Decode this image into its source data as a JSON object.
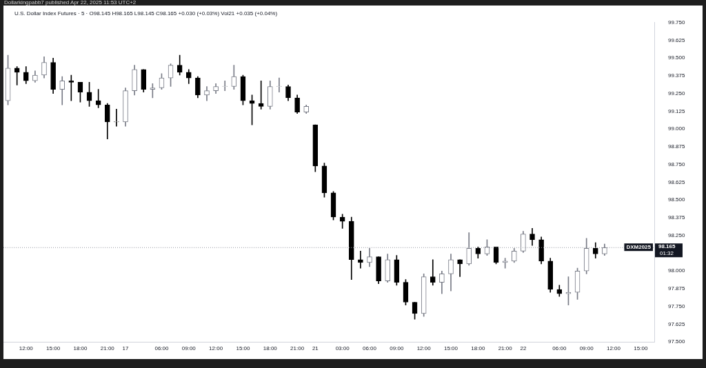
{
  "chart_data": {
    "type": "candlestick",
    "title": "U.S. Dollar Index Futures · 5 · O98.145 H98.165 L98.145 C98.165 +0.030 (+0.03%) Vol21 +0.035 (+0.04%)",
    "annotations": [
      "Dollarkingpabb7 published Apr 22, 2025 11:53 UTC+2",
      "DXM2025",
      "01:32"
    ],
    "categories": [
      null,
      null,
      "12:00",
      null,
      null,
      "15:00",
      null,
      null,
      "18:00",
      null,
      null,
      "21:00",
      null,
      "17",
      null,
      null,
      null,
      "06:00",
      null,
      null,
      "09:00",
      null,
      null,
      "12:00",
      null,
      null,
      "15:00",
      null,
      null,
      "18:00",
      null,
      null,
      "21:00",
      null,
      "21",
      null,
      null,
      "03:00",
      null,
      null,
      "06:00",
      null,
      null,
      "09:00",
      null,
      null,
      "12:00",
      null,
      null,
      "15:00",
      null,
      null,
      "18:00",
      null,
      null,
      "21:00",
      null,
      "22",
      null,
      null,
      null,
      "06:00",
      null,
      null,
      "09:00",
      null,
      null,
      "12:00",
      null,
      null,
      "15:00",
      null
    ],
    "colors": [
      "#787b86",
      "#000000",
      "#000000",
      "#787b86",
      "#787b86",
      "#000000",
      "#787b86",
      "#000000",
      "#000000",
      "#000000",
      "#000000",
      "#000000",
      "#000000",
      "#787b86",
      "#787b86",
      "#000000",
      "#787b86",
      "#787b86",
      "#787b86",
      "#000000",
      "#000000",
      "#000000",
      "#787b86",
      "#787b86",
      "#787b86",
      "#787b86",
      "#000000",
      "#000000",
      "#000000",
      "#787b86",
      "#787b86",
      "#000000",
      "#000000",
      "#787b86",
      "#000000",
      "#000000",
      "#000000",
      "#000000",
      "#000000",
      "#000000",
      "#787b86",
      "#000000",
      "#787b86",
      "#000000",
      "#000000",
      "#000000",
      "#787b86",
      "#000000",
      "#787b86",
      "#787b86",
      "#000000",
      "#787b86",
      "#000000",
      "#787b86",
      "#000000",
      "#787b86",
      "#787b86",
      "#787b86",
      "#000000",
      "#000000",
      "#000000",
      "#000000",
      "#787b86",
      "#787b86",
      "#787b86",
      "#000000",
      "#787b86",
      null,
      null,
      null,
      null,
      null
    ],
    "ohlc": [
      [
        99.2,
        99.52,
        99.17,
        99.43
      ],
      [
        99.43,
        99.44,
        99.31,
        99.4
      ],
      [
        99.4,
        99.44,
        99.32,
        99.34
      ],
      [
        99.34,
        99.41,
        99.33,
        99.38
      ],
      [
        99.38,
        99.51,
        99.36,
        99.47
      ],
      [
        99.47,
        99.5,
        99.25,
        99.28
      ],
      [
        99.28,
        99.37,
        99.17,
        99.34
      ],
      [
        99.34,
        99.38,
        99.2,
        99.33
      ],
      [
        99.33,
        99.33,
        99.19,
        99.26
      ],
      [
        99.26,
        99.33,
        99.16,
        99.2
      ],
      [
        99.2,
        99.28,
        99.15,
        99.17
      ],
      [
        99.17,
        99.18,
        98.93,
        99.05
      ],
      [
        99.05,
        99.14,
        99.02,
        99.05
      ],
      [
        99.05,
        99.29,
        99.02,
        99.27
      ],
      [
        99.27,
        99.45,
        99.24,
        99.42
      ],
      [
        99.42,
        99.42,
        99.26,
        99.28
      ],
      [
        99.28,
        99.32,
        99.22,
        99.29
      ],
      [
        99.29,
        99.39,
        99.28,
        99.36
      ],
      [
        99.36,
        99.46,
        99.3,
        99.45
      ],
      [
        99.45,
        99.52,
        99.38,
        99.4
      ],
      [
        99.4,
        99.42,
        99.32,
        99.36
      ],
      [
        99.36,
        99.37,
        99.22,
        99.24
      ],
      [
        99.24,
        99.3,
        99.2,
        99.27
      ],
      [
        99.27,
        99.32,
        99.25,
        99.3
      ],
      [
        99.3,
        99.34,
        99.27,
        99.3
      ],
      [
        99.3,
        99.45,
        99.28,
        99.37
      ],
      [
        99.37,
        99.38,
        99.17,
        99.2
      ],
      [
        99.2,
        99.24,
        99.03,
        99.18
      ],
      [
        99.18,
        99.34,
        99.14,
        99.16
      ],
      [
        99.16,
        99.34,
        99.14,
        99.3
      ],
      [
        99.3,
        99.36,
        99.26,
        99.3
      ],
      [
        99.3,
        99.31,
        99.2,
        99.22
      ],
      [
        99.22,
        99.24,
        99.11,
        99.12
      ],
      [
        99.12,
        99.17,
        99.11,
        99.16
      ],
      [
        99.03,
        99.03,
        98.7,
        98.74
      ],
      [
        98.74,
        98.76,
        98.52,
        98.55
      ],
      [
        98.55,
        98.56,
        98.36,
        98.38
      ],
      [
        98.38,
        98.4,
        98.3,
        98.35
      ],
      [
        98.35,
        98.38,
        97.94,
        98.08
      ],
      [
        98.08,
        98.14,
        98.02,
        98.06
      ],
      [
        98.06,
        98.16,
        98.03,
        98.1
      ],
      [
        98.1,
        98.1,
        97.91,
        97.93
      ],
      [
        97.93,
        98.12,
        97.92,
        98.08
      ],
      [
        98.08,
        98.11,
        97.9,
        97.92
      ],
      [
        97.92,
        97.94,
        97.76,
        97.78
      ],
      [
        97.78,
        97.78,
        97.66,
        97.7
      ],
      [
        97.7,
        97.98,
        97.68,
        97.96
      ],
      [
        97.96,
        98.08,
        97.9,
        97.92
      ],
      [
        97.92,
        98.0,
        97.84,
        97.98
      ],
      [
        97.98,
        98.12,
        97.86,
        98.08
      ],
      [
        98.08,
        98.08,
        97.96,
        98.05
      ],
      [
        98.05,
        98.27,
        98.04,
        98.16
      ],
      [
        98.16,
        98.17,
        98.09,
        98.12
      ],
      [
        98.12,
        98.22,
        98.11,
        98.17
      ],
      [
        98.17,
        98.17,
        98.05,
        98.06
      ],
      [
        98.06,
        98.09,
        98.02,
        98.07
      ],
      [
        98.07,
        98.16,
        98.06,
        98.14
      ],
      [
        98.14,
        98.28,
        98.13,
        98.26
      ],
      [
        98.26,
        98.3,
        98.18,
        98.22
      ],
      [
        98.22,
        98.24,
        98.05,
        98.07
      ],
      [
        98.07,
        98.09,
        97.85,
        97.87
      ],
      [
        97.87,
        97.9,
        97.82,
        97.84
      ],
      [
        97.84,
        97.96,
        97.76,
        97.85
      ],
      [
        97.85,
        98.02,
        97.8,
        98.0
      ],
      [
        98.0,
        98.23,
        97.98,
        98.16
      ],
      [
        98.16,
        98.2,
        98.09,
        98.12
      ],
      [
        98.12,
        98.19,
        98.11,
        98.165
      ],
      null,
      null,
      null,
      null,
      null
    ],
    "ylim": [
      97.5,
      99.75
    ],
    "yticks": [
      {
        "value": 97.5,
        "label": "97.500"
      },
      {
        "value": 97.625,
        "label": "97.625"
      },
      {
        "value": 97.75,
        "label": "97.750"
      },
      {
        "value": 97.875,
        "label": "97.875"
      },
      {
        "value": 98,
        "label": "98.000"
      },
      {
        "value": 98.25,
        "label": "98.250"
      },
      {
        "value": 98.375,
        "label": "98.375"
      },
      {
        "value": 98.5,
        "label": "98.500"
      },
      {
        "value": 98.625,
        "label": "98.625"
      },
      {
        "value": 98.75,
        "label": "98.750"
      },
      {
        "value": 98.875,
        "label": "98.875"
      },
      {
        "value": 99,
        "label": "99.000"
      },
      {
        "value": 99.125,
        "label": "99.125"
      },
      {
        "value": 99.25,
        "label": "99.250"
      },
      {
        "value": 99.375,
        "label": "99.375"
      },
      {
        "value": 99.5,
        "label": "99.500"
      },
      {
        "value": 99.625,
        "label": "99.625"
      },
      {
        "value": 99.75,
        "label": "99.750"
      }
    ],
    "ref_lines": [
      {
        "axis": "y",
        "value": 98.165,
        "label": "98.165",
        "color": "#9598a1",
        "line_style": "dotted"
      }
    ],
    "grid": false,
    "legend": false
  }
}
